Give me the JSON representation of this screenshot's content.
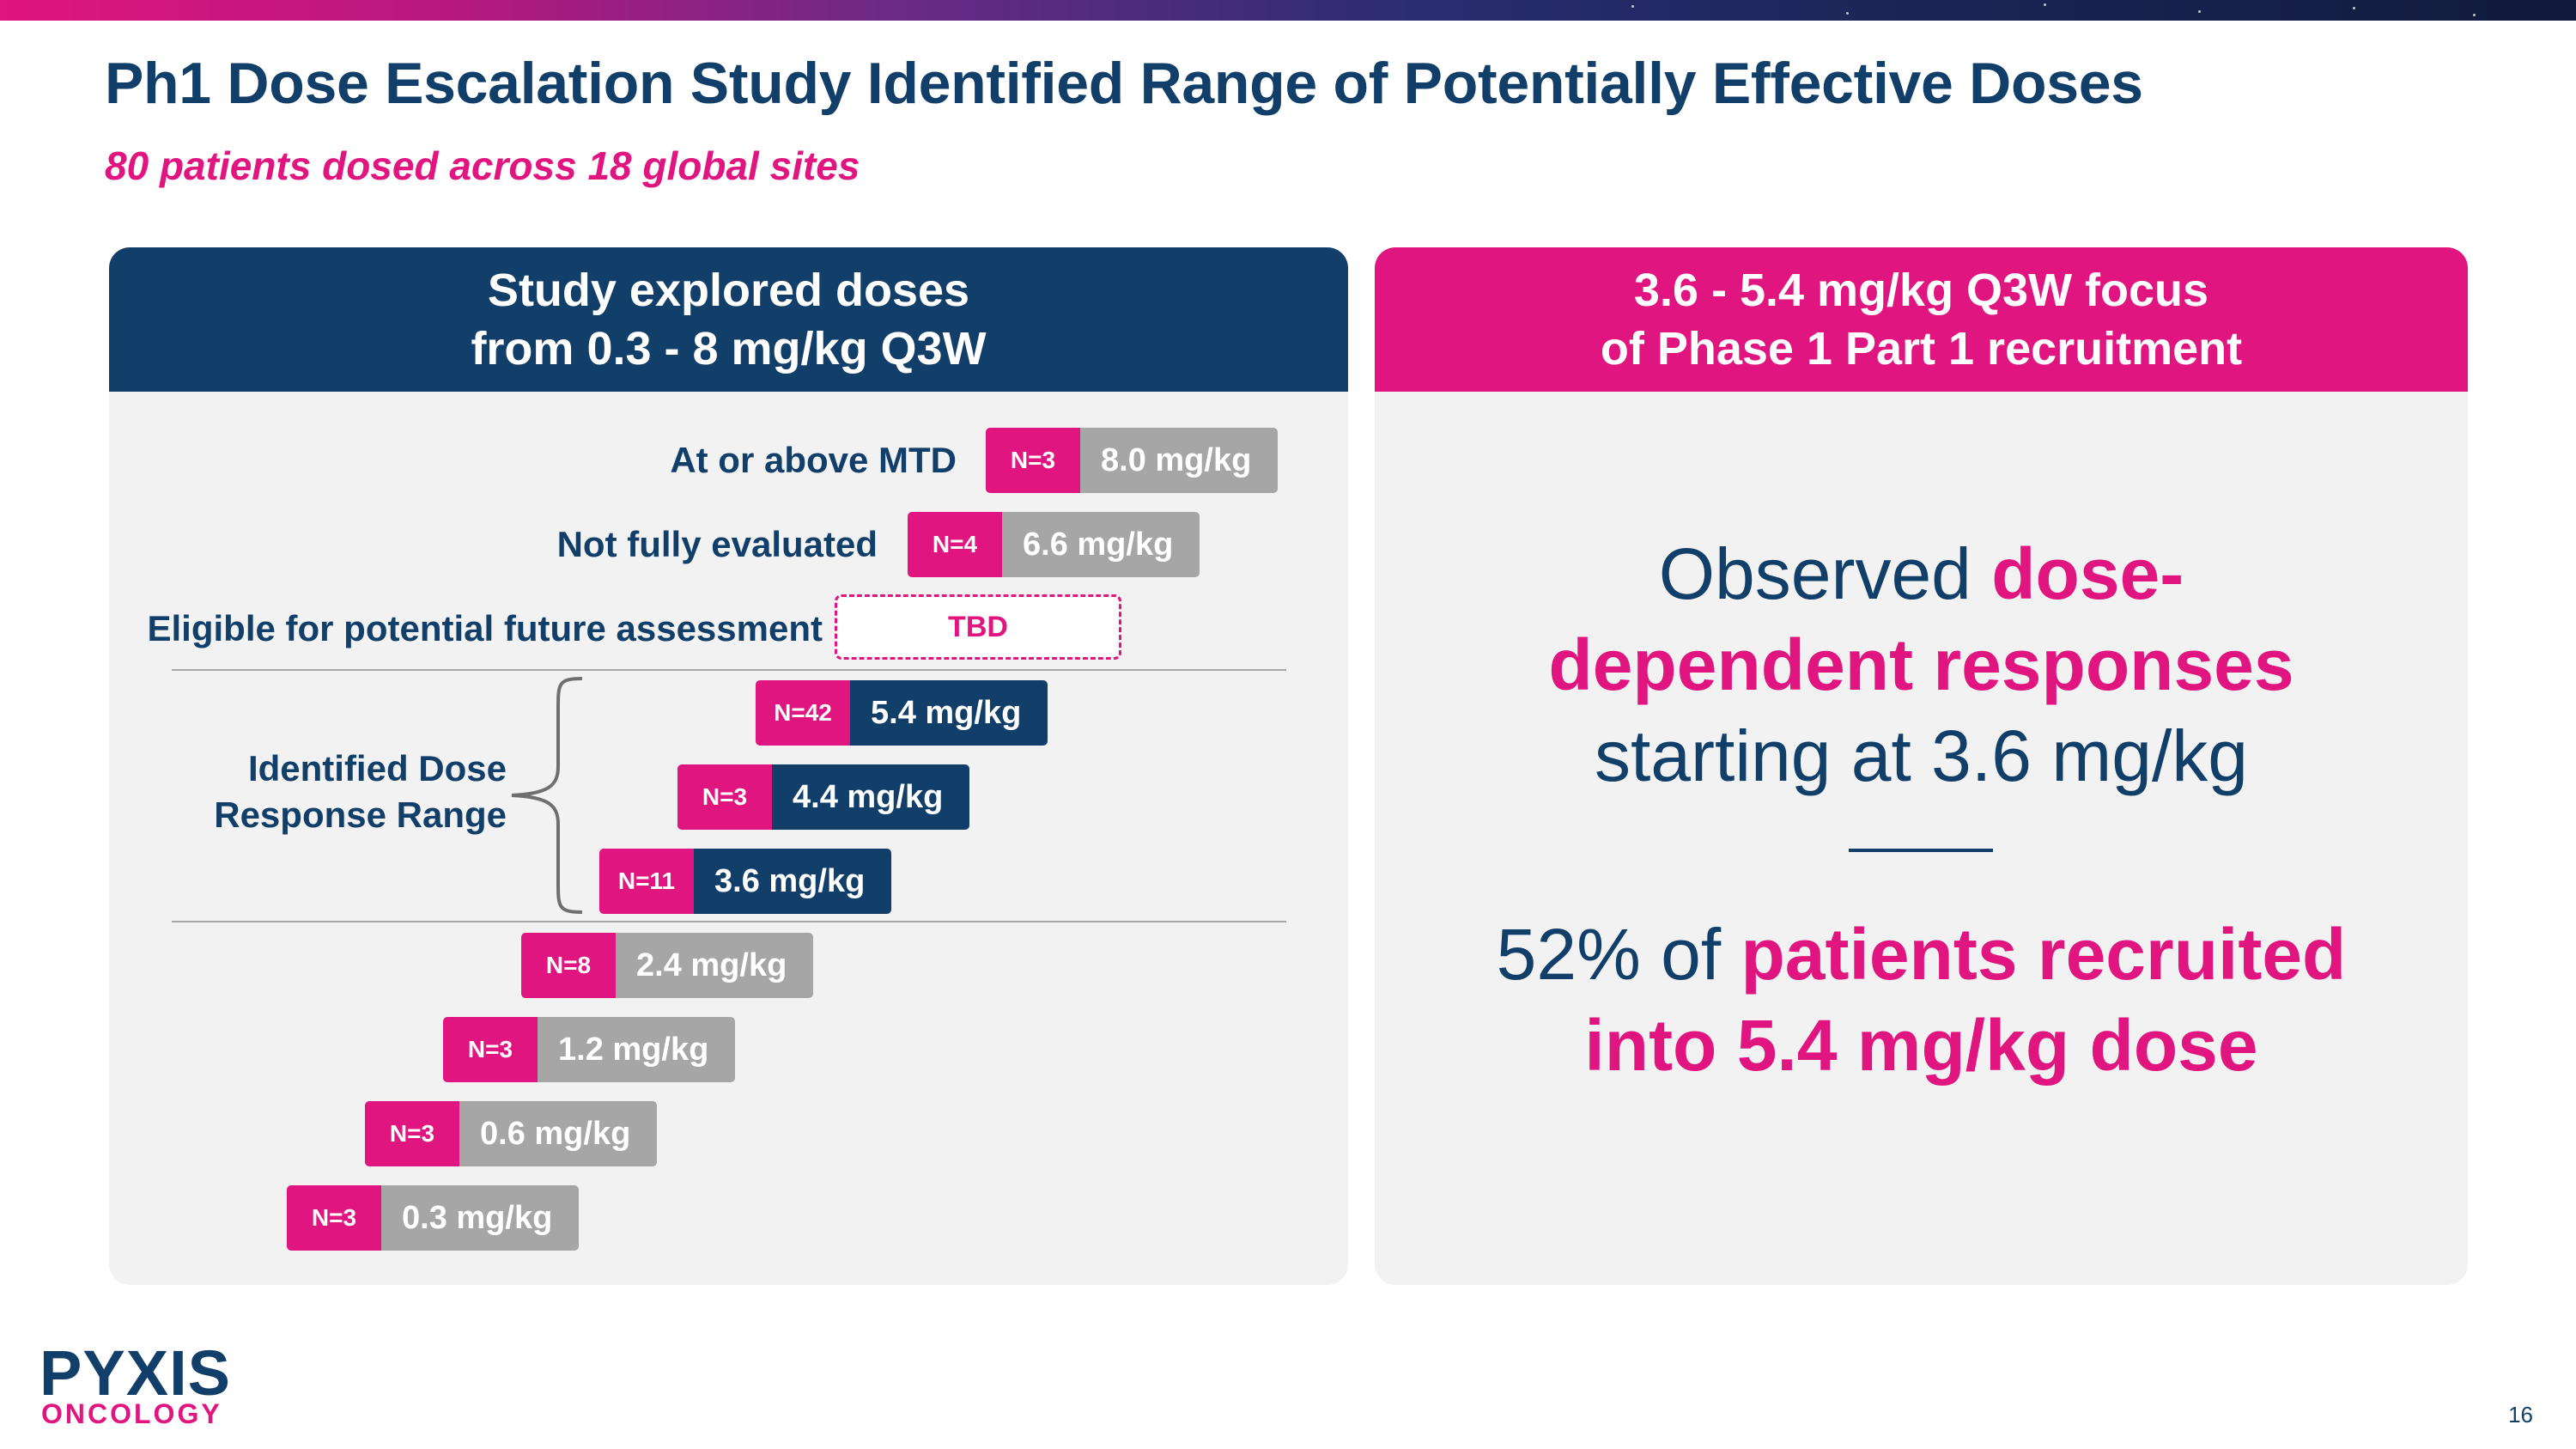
{
  "header": {
    "title": "Ph1 Dose Escalation Study Identified Range of Potentially Effective Doses",
    "subtitle": "80 patients dosed across 18 global sites"
  },
  "left_panel": {
    "heading_line1": "Study explored doses",
    "heading_line2": "from 0.3 - 8 mg/kg Q3W",
    "row_labels": {
      "mtd": "At or above MTD",
      "not_evaluated": "Not fully evaluated",
      "eligible": "Eligible for potential future assessment"
    },
    "tbd_label": "TBD",
    "range_label_line1": "Identified Dose",
    "range_label_line2": "Response Range",
    "doses": [
      {
        "n": "N=3",
        "dose": "8.0 mg/kg"
      },
      {
        "n": "N=4",
        "dose": "6.6 mg/kg"
      },
      {
        "n": "N=42",
        "dose": "5.4 mg/kg"
      },
      {
        "n": "N=3",
        "dose": "4.4 mg/kg"
      },
      {
        "n": "N=11",
        "dose": "3.6 mg/kg"
      },
      {
        "n": "N=8",
        "dose": "2.4 mg/kg"
      },
      {
        "n": "N=3",
        "dose": "1.2 mg/kg"
      },
      {
        "n": "N=3",
        "dose": "0.6 mg/kg"
      },
      {
        "n": "N=3",
        "dose": "0.3 mg/kg"
      }
    ]
  },
  "right_panel": {
    "heading_line1": "3.6 - 5.4 mg/kg Q3W focus",
    "heading_line2": "of Phase 1 Part 1 recruitment",
    "obs_prefix": "Observed ",
    "obs_hl1": "dose-",
    "obs_hl2": "dependent responses",
    "obs_suffix": "starting at 3.6 mg/kg",
    "stat_prefix": "52% of ",
    "stat_hl1": "patients recruited",
    "stat_hl2": "into 5.4 mg/kg dose"
  },
  "footer": {
    "logo_top": "PYXIS",
    "logo_bottom": "ONCOLOGY",
    "page_number": "16"
  },
  "colors": {
    "navy": "#123f69",
    "pink": "#e0157f",
    "gray": "#a6a6a6",
    "panel_bg": "#f2f2f2"
  }
}
